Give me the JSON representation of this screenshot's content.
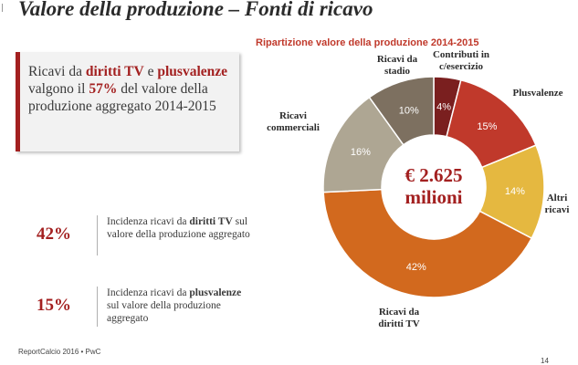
{
  "header": {
    "title": "Valore della produzione – Fonti di ricavo"
  },
  "callout": {
    "t1": "Ricavi da ",
    "b1": "diritti TV",
    "t2": " e ",
    "b2": "plusvalenze",
    "t3": " valgono il ",
    "b3": "57%",
    "t4": " del valore della produzione aggregato 2014-2015"
  },
  "stats": [
    {
      "pct": "42%",
      "pre": "Incidenza ricavi da ",
      "bold": "diritti TV",
      "post": " sul valore della produzione aggregato"
    },
    {
      "pct": "15%",
      "pre": "Incidenza ricavi da ",
      "bold": "plusvalenze",
      "post": " sul valore della produzione aggregato"
    }
  ],
  "footer": {
    "source": "ReportCalcio 2016 • PwC",
    "page": "14"
  },
  "chart_data": {
    "type": "pie",
    "donut": true,
    "title": "Ripartizione valore della produzione 2014-2015",
    "center_label": [
      "€ 2.625",
      "milioni"
    ],
    "slices": [
      {
        "label": [
          "Contributi in",
          "c/esercizio"
        ],
        "value": 4,
        "value_label": "4%",
        "color": "#7a1f1f"
      },
      {
        "label": [
          "Plusvalenze"
        ],
        "value": 15,
        "value_label": "15%",
        "color": "#c0392b"
      },
      {
        "label": [
          "Altri",
          "ricavi"
        ],
        "value": 14,
        "value_label": "14%",
        "color": "#e5b840"
      },
      {
        "label": [
          "Ricavi da",
          "diritti TV"
        ],
        "value": 42,
        "value_label": "42%",
        "color": "#d2691e"
      },
      {
        "label": [
          "Ricavi",
          "commerciali"
        ],
        "value": 16,
        "value_label": "16%",
        "color": "#aea693"
      },
      {
        "label": [
          "Ricavi da",
          "stadio"
        ],
        "value": 10,
        "value_label": "10%",
        "color": "#7d7060"
      }
    ]
  }
}
